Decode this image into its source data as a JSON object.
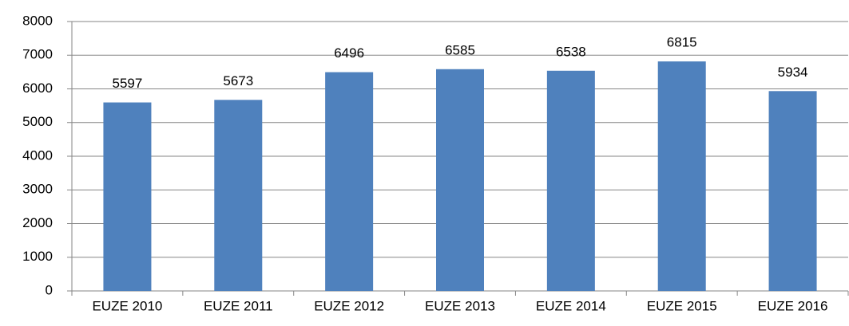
{
  "chart_data": {
    "type": "bar",
    "categories": [
      "EUZE 2010",
      "EUZE 2011",
      "EUZE 2012",
      "EUZE 2013",
      "EUZE 2014",
      "EUZE 2015",
      "EUZE 2016"
    ],
    "values": [
      5597,
      5673,
      6496,
      6585,
      6538,
      6815,
      5934
    ],
    "color": "#4f81bd",
    "ylim": [
      0,
      8000
    ],
    "yticks": [
      0,
      1000,
      2000,
      3000,
      4000,
      5000,
      6000,
      7000,
      8000
    ],
    "grid": true,
    "data_labels": true
  }
}
